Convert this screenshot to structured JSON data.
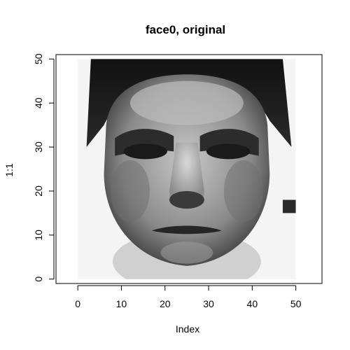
{
  "chart_data": {
    "type": "heatmap",
    "title": "face0, original",
    "xlabel": "Index",
    "ylabel": "1:1",
    "xlim": [
      -5,
      56
    ],
    "ylim": [
      -1,
      51
    ],
    "image_extent": {
      "x": [
        0,
        50
      ],
      "y": [
        0,
        50
      ]
    },
    "colormap": "grayscale",
    "x_ticks": [
      0,
      10,
      20,
      30,
      40,
      50
    ],
    "y_ticks": [
      0,
      10,
      20,
      30,
      40,
      50
    ],
    "x_tick_labels": [
      "0",
      "10",
      "20",
      "30",
      "40",
      "50"
    ],
    "y_tick_labels": [
      "0",
      "10",
      "20",
      "30",
      "40",
      "50"
    ],
    "image_content": "grayscale photograph of a man's face"
  }
}
